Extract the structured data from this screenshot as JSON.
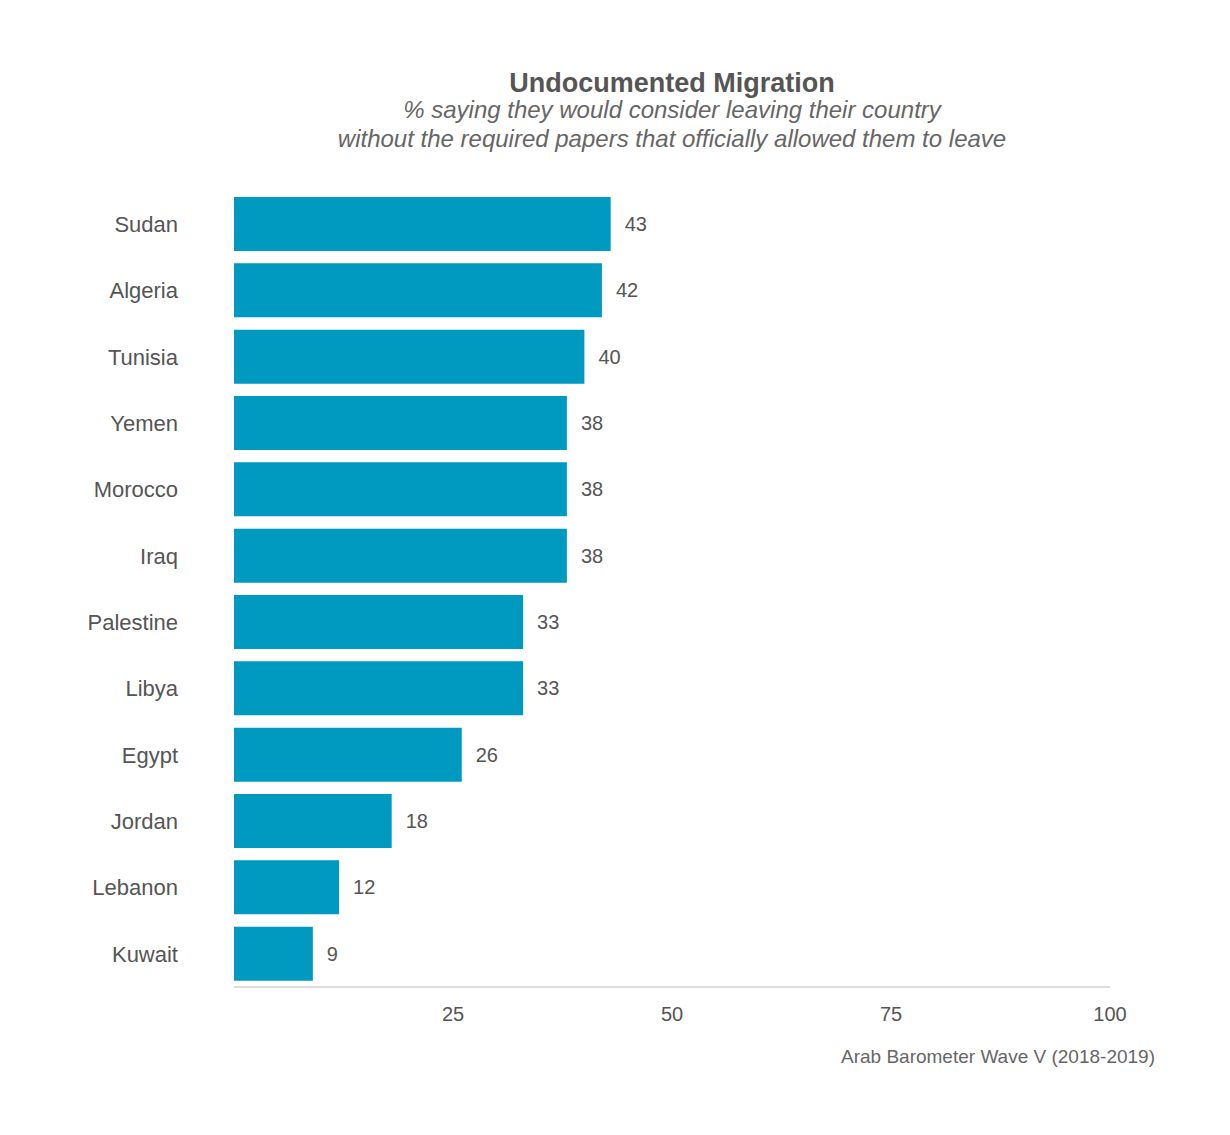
{
  "chart_data": {
    "type": "bar",
    "title": "Undocumented Migration",
    "subtitle": [
      "% saying they would consider leaving their country",
      "without the required papers that officially allowed them to leave"
    ],
    "caption": "Arab Barometer Wave V (2018-2019)",
    "categories": [
      "Sudan",
      "Algeria",
      "Tunisia",
      "Yemen",
      "Morocco",
      "Iraq",
      "Palestine",
      "Libya",
      "Egypt",
      "Jordan",
      "Lebanon",
      "Kuwait"
    ],
    "values": [
      43,
      42,
      40,
      38,
      38,
      38,
      33,
      33,
      26,
      18,
      12,
      9
    ],
    "color": "#0099c0",
    "orientation": "horizontal",
    "xlim": [
      0,
      100
    ],
    "xticks": [
      25,
      50,
      75,
      100
    ],
    "grid": false,
    "data_labels": true
  }
}
